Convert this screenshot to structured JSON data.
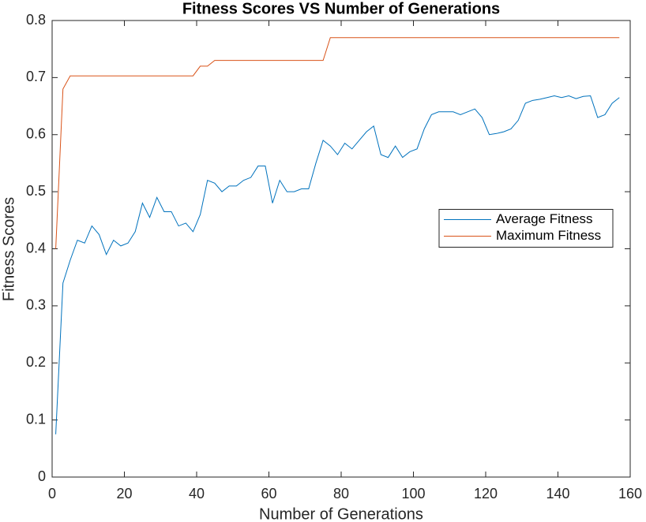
{
  "chart_data": {
    "type": "line",
    "title": "Fitness Scores VS Number of Generations",
    "xlabel": "Number of Generations",
    "ylabel": "Fitness Scores",
    "x": [
      1,
      3,
      5,
      7,
      9,
      11,
      13,
      15,
      17,
      19,
      21,
      23,
      25,
      27,
      29,
      31,
      33,
      35,
      37,
      39,
      41,
      43,
      45,
      47,
      49,
      51,
      53,
      55,
      57,
      59,
      61,
      63,
      65,
      67,
      69,
      71,
      73,
      75,
      77,
      79,
      81,
      83,
      85,
      87,
      89,
      91,
      93,
      95,
      97,
      99,
      101,
      103,
      105,
      107,
      109,
      111,
      113,
      115,
      117,
      119,
      121,
      123,
      125,
      127,
      129,
      131,
      133,
      135,
      137,
      139,
      141,
      143,
      145,
      147,
      149,
      151,
      153,
      155,
      157
    ],
    "series": [
      {
        "name": "Average Fitness",
        "color": "#0072bd",
        "values": [
          0.075,
          0.34,
          0.38,
          0.415,
          0.41,
          0.44,
          0.425,
          0.39,
          0.415,
          0.405,
          0.41,
          0.43,
          0.48,
          0.455,
          0.49,
          0.465,
          0.465,
          0.44,
          0.445,
          0.43,
          0.46,
          0.52,
          0.515,
          0.5,
          0.51,
          0.51,
          0.52,
          0.525,
          0.545,
          0.545,
          0.48,
          0.52,
          0.5,
          0.5,
          0.505,
          0.505,
          0.55,
          0.59,
          0.58,
          0.565,
          0.585,
          0.575,
          0.59,
          0.605,
          0.615,
          0.565,
          0.56,
          0.58,
          0.56,
          0.57,
          0.575,
          0.61,
          0.635,
          0.64,
          0.64,
          0.64,
          0.635,
          0.64,
          0.645,
          0.63,
          0.6,
          0.602,
          0.605,
          0.61,
          0.625,
          0.655,
          0.66,
          0.662,
          0.665,
          0.668,
          0.665,
          0.668,
          0.663,
          0.667,
          0.668,
          0.63,
          0.635,
          0.655,
          0.665
        ]
      },
      {
        "name": "Maximum Fitness",
        "color": "#d95319",
        "values": [
          0.4,
          0.68,
          0.703,
          0.703,
          0.703,
          0.703,
          0.703,
          0.703,
          0.703,
          0.703,
          0.703,
          0.703,
          0.703,
          0.703,
          0.703,
          0.703,
          0.703,
          0.703,
          0.703,
          0.703,
          0.72,
          0.72,
          0.73,
          0.73,
          0.73,
          0.73,
          0.73,
          0.73,
          0.73,
          0.73,
          0.73,
          0.73,
          0.73,
          0.73,
          0.73,
          0.73,
          0.73,
          0.73,
          0.77,
          0.77,
          0.77,
          0.77,
          0.77,
          0.77,
          0.77,
          0.77,
          0.77,
          0.77,
          0.77,
          0.77,
          0.77,
          0.77,
          0.77,
          0.77,
          0.77,
          0.77,
          0.77,
          0.77,
          0.77,
          0.77,
          0.77,
          0.77,
          0.77,
          0.77,
          0.77,
          0.77,
          0.77,
          0.77,
          0.77,
          0.77,
          0.77,
          0.77,
          0.77,
          0.77,
          0.77,
          0.77,
          0.77,
          0.77,
          0.77
        ]
      }
    ],
    "xlim": [
      0,
      160
    ],
    "xticks": [
      0,
      20,
      40,
      60,
      80,
      100,
      120,
      140,
      160
    ],
    "ylim": [
      0,
      0.8
    ],
    "yticks": [
      0,
      0.1,
      0.2,
      0.3,
      0.4,
      0.5,
      0.6,
      0.7,
      0.8
    ],
    "legend": "east",
    "grid": false
  }
}
